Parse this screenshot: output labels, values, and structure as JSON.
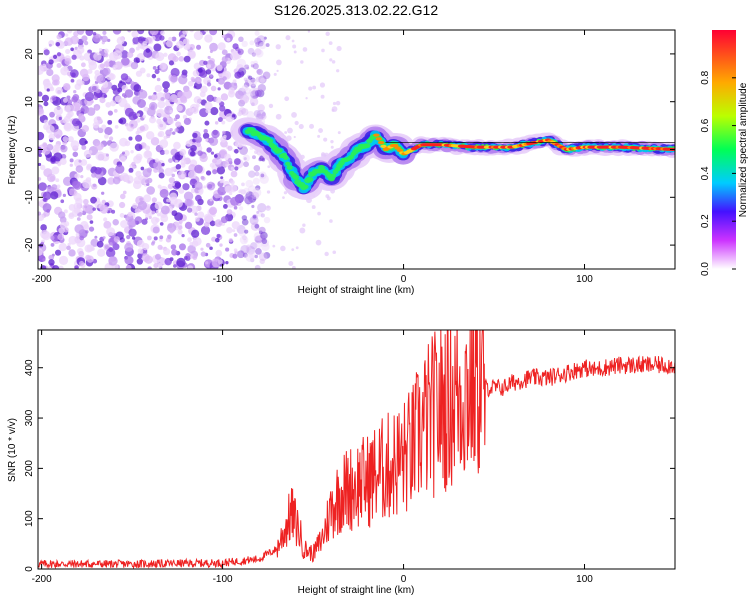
{
  "title": "S126.2025.313.02.22.G12",
  "chart_data": [
    {
      "type": "heatmap",
      "xlabel": "Height of straight line (km)",
      "ylabel": "Frequency (Hz)",
      "xlim": [
        -202,
        150
      ],
      "ylim": [
        -25,
        25
      ],
      "xticks": [
        -200,
        -100,
        0,
        100
      ],
      "yticks": [
        -20,
        -10,
        0,
        10,
        20
      ],
      "colorbar": {
        "label": "Normalized spectral amplitude",
        "range": [
          0,
          1
        ],
        "ticks": [
          0.0,
          0.2,
          0.4,
          0.6,
          0.8
        ]
      },
      "ridge": {
        "x": [
          -85,
          -80,
          -75,
          -70,
          -65,
          -60,
          -55,
          -50,
          -45,
          -40,
          -35,
          -30,
          -25,
          -20,
          -15,
          -10,
          -5,
          0,
          5,
          10,
          20,
          40,
          60,
          80,
          90,
          100,
          120,
          150
        ],
        "freq": [
          4,
          3,
          2,
          0,
          -2,
          -6,
          -8,
          -5,
          -4,
          -6,
          -3,
          -2,
          0,
          1,
          3,
          0,
          1,
          -1,
          0,
          1,
          1,
          0.5,
          0.5,
          2,
          0,
          0.5,
          0.5,
          0
        ]
      }
    },
    {
      "type": "line",
      "xlabel": "Height of straight line (km)",
      "ylabel": "SNR (10 * v/v)",
      "xlim": [
        -202,
        150
      ],
      "ylim": [
        0,
        475
      ],
      "xticks": [
        -200,
        -100,
        0,
        100
      ],
      "yticks": [
        0,
        100,
        200,
        300,
        400
      ],
      "series": [
        {
          "name": "SNR",
          "color": "#ee2222",
          "x": [
            -202,
            -150,
            -100,
            -80,
            -70,
            -62,
            -58,
            -55,
            -50,
            -45,
            -40,
            -35,
            -30,
            -25,
            -20,
            -15,
            -10,
            -5,
            0,
            5,
            10,
            15,
            20,
            25,
            30,
            35,
            40,
            45,
            50,
            55,
            60,
            70,
            80,
            90,
            100,
            105,
            110,
            120,
            130,
            140,
            150
          ],
          "y": [
            10,
            10,
            12,
            20,
            40,
            110,
            80,
            40,
            30,
            60,
            120,
            150,
            160,
            170,
            175,
            190,
            200,
            210,
            220,
            240,
            280,
            300,
            320,
            340,
            350,
            360,
            380,
            360,
            360,
            360,
            370,
            380,
            380,
            390,
            400,
            395,
            400,
            405,
            405,
            405,
            405
          ]
        }
      ]
    }
  ]
}
